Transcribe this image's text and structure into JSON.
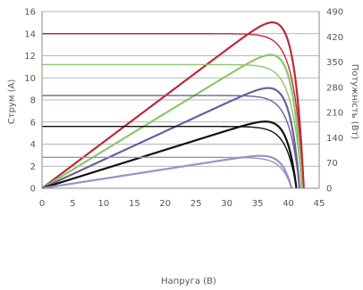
{
  "chart_data": {
    "type": "line",
    "xlabel": "Напруга (В)",
    "ylabel": "Струм (А)",
    "y2label": "Потужність (Вт)",
    "xlim": [
      0,
      45
    ],
    "ylim": [
      0,
      16
    ],
    "y2lim": [
      0,
      490
    ],
    "x_ticks": [
      "0",
      "5",
      "10",
      "15",
      "20",
      "25",
      "30",
      "35",
      "40",
      "45"
    ],
    "y_ticks": [
      "0",
      "2",
      "4",
      "6",
      "8",
      "10",
      "12",
      "14",
      "16"
    ],
    "y2_ticks": [
      "0",
      "70",
      "140",
      "210",
      "280",
      "350",
      "420",
      "490"
    ],
    "grid": "horizontal",
    "series": [
      {
        "color": "#c0283a",
        "isc": 14.0,
        "voc": 42.5,
        "pmax": 460,
        "vmp": 35.5
      },
      {
        "color": "#8dc66b",
        "isc": 11.2,
        "voc": 42.2,
        "pmax": 370,
        "vmp": 35.5
      },
      {
        "color": "#6a5f9c",
        "isc": 8.4,
        "voc": 41.8,
        "pmax": 278,
        "vmp": 35.2
      },
      {
        "color": "#111111",
        "isc": 5.6,
        "voc": 41.3,
        "pmax": 185,
        "vmp": 35.0
      },
      {
        "color": "#9a92c0",
        "isc": 2.8,
        "voc": 40.5,
        "pmax": 90,
        "vmp": 34.8
      }
    ]
  }
}
